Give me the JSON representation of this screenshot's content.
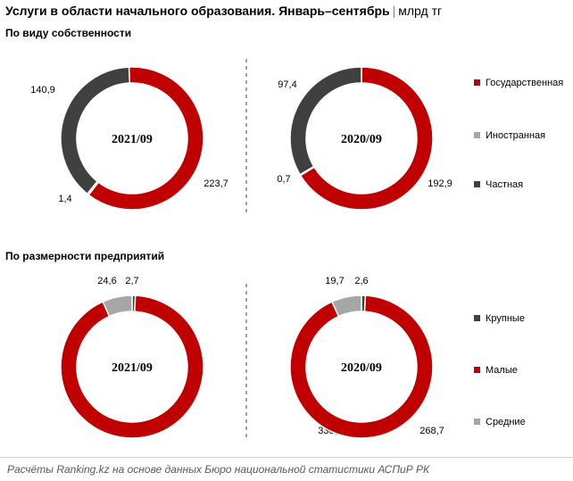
{
  "header": {
    "title": "Услуги в области начального образования. Январь–сентябрь",
    "separator": "|",
    "unit": "млрд тг"
  },
  "footer": {
    "source": "Расчёты Ranking.kz на основе данных Бюро национальной статистики АСПиР РК"
  },
  "colors": {
    "red": "#c00000",
    "dark": "#404040",
    "gray": "#a6a6a6"
  },
  "chart_data": [
    {
      "type": "pie",
      "group": "ownership",
      "title": "По виду собственности",
      "center_label": "2021/09",
      "slices": [
        {
          "name": "Государственная",
          "value": 223.7,
          "label": "223,7",
          "color": "#c00000"
        },
        {
          "name": "Иностранная",
          "value": 1.4,
          "label": "1,4",
          "color": "#a6a6a6"
        },
        {
          "name": "Частная",
          "value": 140.9,
          "label": "140,9",
          "color": "#404040"
        }
      ]
    },
    {
      "type": "pie",
      "group": "ownership",
      "title": "По виду собственности",
      "center_label": "2020/09",
      "slices": [
        {
          "name": "Государственная",
          "value": 192.9,
          "label": "192,9",
          "color": "#c00000"
        },
        {
          "name": "Иностранная",
          "value": 0.7,
          "label": "0,7",
          "color": "#a6a6a6"
        },
        {
          "name": "Частная",
          "value": 97.4,
          "label": "97,4",
          "color": "#404040"
        }
      ]
    },
    {
      "type": "pie",
      "group": "size",
      "title": "По размерности предприятий",
      "center_label": "2021/09",
      "slices": [
        {
          "name": "Крупные",
          "value": 2.7,
          "label": "2,7",
          "color": "#404040"
        },
        {
          "name": "Малые",
          "value": 338.6,
          "label": "338,6",
          "color": "#c00000"
        },
        {
          "name": "Средние",
          "value": 24.6,
          "label": "24,6",
          "color": "#a6a6a6"
        }
      ]
    },
    {
      "type": "pie",
      "group": "size",
      "title": "По размерности предприятий",
      "center_label": "2020/09",
      "slices": [
        {
          "name": "Крупные",
          "value": 2.6,
          "label": "2,6",
          "color": "#404040"
        },
        {
          "name": "Малые",
          "value": 268.7,
          "label": "268,7",
          "color": "#c00000"
        },
        {
          "name": "Средние",
          "value": 19.7,
          "label": "19,7",
          "color": "#a6a6a6"
        }
      ]
    }
  ],
  "legends": {
    "ownership": [
      {
        "name": "Государственная",
        "color": "#c00000"
      },
      {
        "name": "Иностранная",
        "color": "#a6a6a6"
      },
      {
        "name": "Частная",
        "color": "#404040"
      }
    ],
    "size": [
      {
        "name": "Крупные",
        "color": "#404040"
      },
      {
        "name": "Малые",
        "color": "#c00000"
      },
      {
        "name": "Средние",
        "color": "#a6a6a6"
      }
    ]
  },
  "section_titles": {
    "ownership": "По виду собственности",
    "size": "По размерности предприятий"
  }
}
